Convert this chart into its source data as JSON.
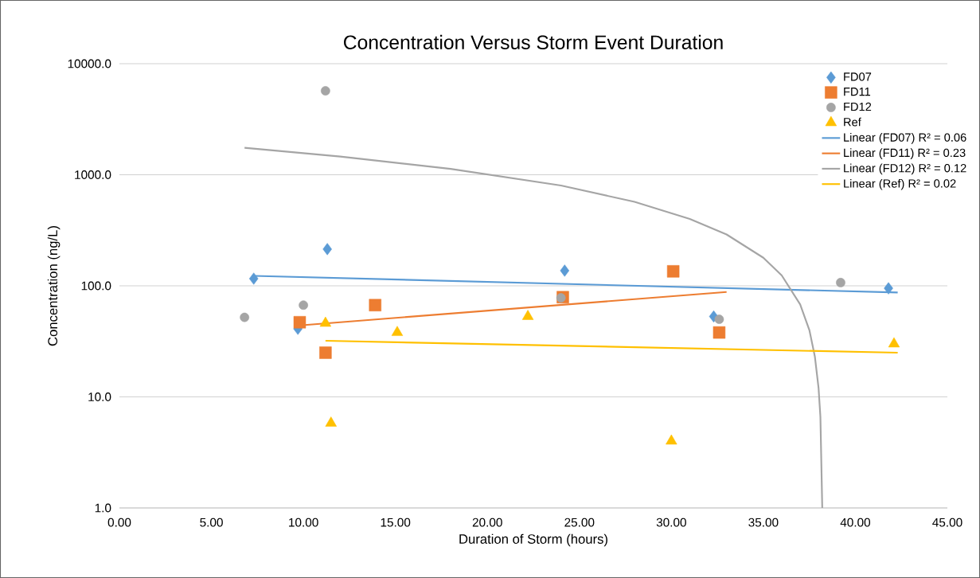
{
  "chart_data": {
    "type": "scatter",
    "title": "Concentration Versus Storm Event Duration",
    "xlabel": "Duration of Storm (hours)",
    "ylabel": "Concentration (ng/L)",
    "log": "y",
    "grid": "y",
    "legend": "top right",
    "xlim": [
      0,
      45
    ],
    "ylim": [
      1,
      10000
    ],
    "xticks": [
      {
        "value": 0,
        "label": "0.00"
      },
      {
        "value": 5,
        "label": "5.00"
      },
      {
        "value": 10,
        "label": "10.00"
      },
      {
        "value": 15,
        "label": "15.00"
      },
      {
        "value": 20,
        "label": "20.00"
      },
      {
        "value": 25,
        "label": "25.00"
      },
      {
        "value": 30,
        "label": "30.00"
      },
      {
        "value": 35,
        "label": "35.00"
      },
      {
        "value": 40,
        "label": "40.00"
      },
      {
        "value": 45,
        "label": "45.00"
      }
    ],
    "yticks": [
      {
        "value": 1,
        "label": "1.0"
      },
      {
        "value": 10,
        "label": "10.0"
      },
      {
        "value": 100,
        "label": "100.0"
      },
      {
        "value": 1000,
        "label": "1000.0"
      },
      {
        "value": 10000,
        "label": "10000.0"
      }
    ],
    "series": [
      {
        "name": "FD07",
        "marker": "diamond",
        "color": "#5b9bd5",
        "x": [
          7.3,
          9.7,
          11.3,
          24.2,
          32.3,
          41.8
        ],
        "values": [
          116,
          41,
          214,
          137,
          53,
          95
        ]
      },
      {
        "name": "FD11",
        "marker": "square",
        "color": "#ed7d31",
        "x": [
          9.8,
          11.2,
          13.9,
          24.1,
          30.1,
          32.6
        ],
        "values": [
          47,
          25,
          67,
          79,
          135,
          38
        ]
      },
      {
        "name": "FD12",
        "marker": "circle",
        "color": "#a5a5a5",
        "x": [
          6.8,
          10.0,
          11.2,
          24.0,
          32.6,
          39.2
        ],
        "values": [
          52,
          67,
          5700,
          78,
          50,
          107
        ]
      },
      {
        "name": "Ref",
        "marker": "triangle",
        "color": "#ffc000",
        "x": [
          11.2,
          11.5,
          15.1,
          22.2,
          30.0,
          42.1
        ],
        "values": [
          46,
          5.8,
          38,
          53,
          4.0,
          30
        ]
      },
      {
        "name": "Linear (FD07)  R² = 0.06",
        "type": "line",
        "marker": "none",
        "color": "#5b9bd5",
        "x": [
          7.3,
          42.3
        ],
        "values": [
          123,
          87
        ]
      },
      {
        "name": "Linear (FD11)  R² = 0.23",
        "type": "line",
        "marker": "none",
        "color": "#ed7d31",
        "x": [
          9.8,
          33.0
        ],
        "values": [
          44,
          88
        ]
      },
      {
        "name": "Linear (FD12)  R² = 0.12",
        "type": "line",
        "marker": "none",
        "color": "#a5a5a5",
        "x": [
          6.8,
          12,
          18,
          24,
          28,
          31,
          33,
          35,
          36,
          37,
          37.5,
          37.8,
          38.0,
          38.1,
          38.2
        ],
        "values": [
          1750,
          1460,
          1130,
          800,
          570,
          400,
          290,
          179,
          124,
          68,
          40,
          23,
          12,
          6.6,
          1
        ]
      },
      {
        "name": "Linear (Ref)  R² = 0.02",
        "type": "line",
        "marker": "none",
        "color": "#ffc000",
        "x": [
          11.2,
          42.3
        ],
        "values": [
          32,
          25
        ]
      }
    ]
  }
}
